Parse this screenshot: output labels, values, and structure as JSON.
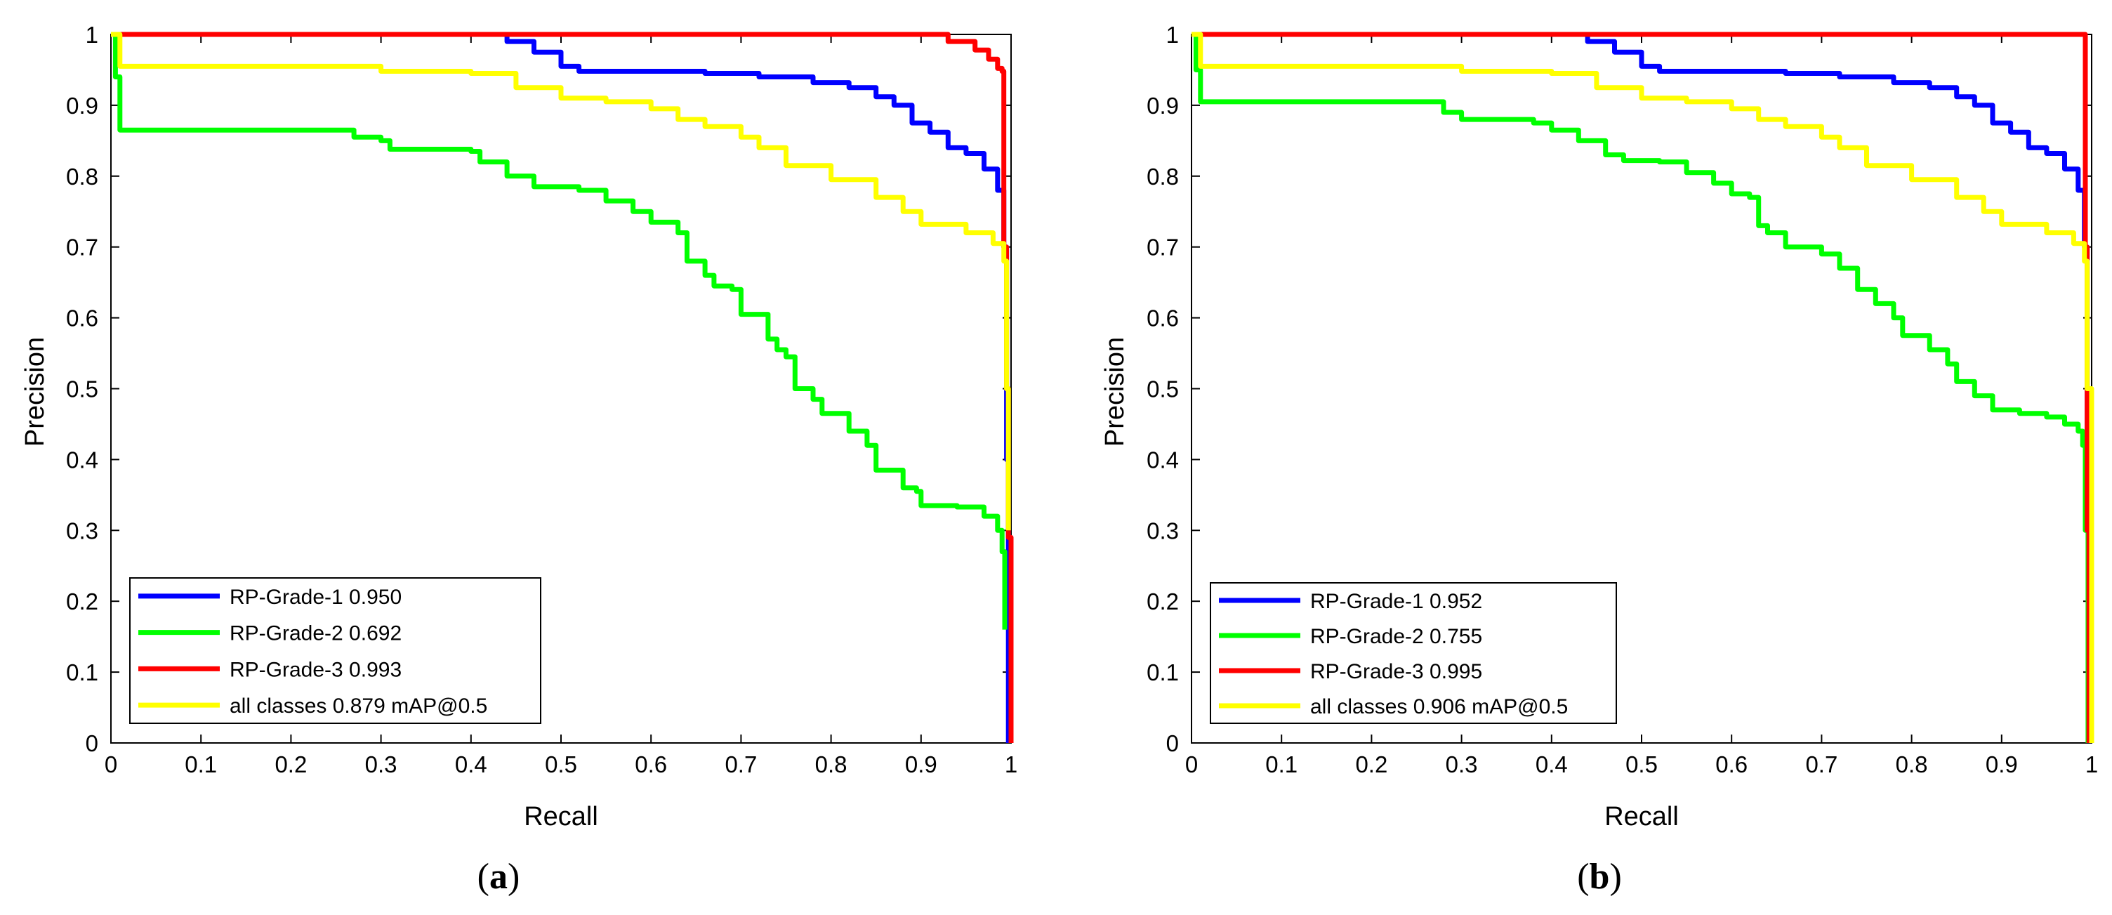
{
  "chart_data": [
    {
      "type": "line",
      "panel_label": "a",
      "xlabel": "Recall",
      "ylabel": "Precision",
      "xlim": [
        0,
        1
      ],
      "ylim": [
        0,
        1
      ],
      "x_ticks": [
        "0",
        "0.1",
        "0.2",
        "0.3",
        "0.4",
        "0.5",
        "0.6",
        "0.7",
        "0.8",
        "0.9",
        "1"
      ],
      "y_ticks": [
        "0",
        "0.1",
        "0.2",
        "0.3",
        "0.4",
        "0.5",
        "0.6",
        "0.7",
        "0.8",
        "0.9",
        "1"
      ],
      "legend_position": "bottom-left",
      "series": [
        {
          "name": "RP-Grade-1 0.950",
          "color": "#0000ff",
          "points": [
            [
              0.0,
              1.0
            ],
            [
              0.4,
              1.0
            ],
            [
              0.44,
              0.99
            ],
            [
              0.47,
              0.975
            ],
            [
              0.5,
              0.955
            ],
            [
              0.52,
              0.948
            ],
            [
              0.6,
              0.948
            ],
            [
              0.66,
              0.945
            ],
            [
              0.72,
              0.94
            ],
            [
              0.78,
              0.932
            ],
            [
              0.82,
              0.925
            ],
            [
              0.85,
              0.912
            ],
            [
              0.87,
              0.9
            ],
            [
              0.89,
              0.875
            ],
            [
              0.91,
              0.862
            ],
            [
              0.93,
              0.84
            ],
            [
              0.95,
              0.832
            ],
            [
              0.97,
              0.81
            ],
            [
              0.985,
              0.78
            ],
            [
              0.992,
              0.7
            ],
            [
              0.995,
              0.4
            ],
            [
              0.997,
              0.0
            ]
          ]
        },
        {
          "name": "RP-Grade-2 0.692",
          "color": "#00ff00",
          "points": [
            [
              0.0,
              1.0
            ],
            [
              0.005,
              0.94
            ],
            [
              0.01,
              0.865
            ],
            [
              0.26,
              0.865
            ],
            [
              0.27,
              0.855
            ],
            [
              0.3,
              0.85
            ],
            [
              0.31,
              0.838
            ],
            [
              0.4,
              0.835
            ],
            [
              0.41,
              0.82
            ],
            [
              0.44,
              0.8
            ],
            [
              0.47,
              0.785
            ],
            [
              0.52,
              0.78
            ],
            [
              0.55,
              0.765
            ],
            [
              0.58,
              0.75
            ],
            [
              0.6,
              0.735
            ],
            [
              0.63,
              0.72
            ],
            [
              0.64,
              0.68
            ],
            [
              0.66,
              0.66
            ],
            [
              0.67,
              0.645
            ],
            [
              0.69,
              0.64
            ],
            [
              0.7,
              0.605
            ],
            [
              0.73,
              0.57
            ],
            [
              0.74,
              0.555
            ],
            [
              0.75,
              0.545
            ],
            [
              0.76,
              0.5
            ],
            [
              0.78,
              0.485
            ],
            [
              0.79,
              0.465
            ],
            [
              0.82,
              0.44
            ],
            [
              0.84,
              0.42
            ],
            [
              0.85,
              0.385
            ],
            [
              0.88,
              0.36
            ],
            [
              0.895,
              0.355
            ],
            [
              0.9,
              0.335
            ],
            [
              0.94,
              0.333
            ],
            [
              0.97,
              0.32
            ],
            [
              0.985,
              0.3
            ],
            [
              0.99,
              0.27
            ],
            [
              0.993,
              0.16
            ]
          ]
        },
        {
          "name": "RP-Grade-3 0.993",
          "color": "#ff0000",
          "points": [
            [
              0.0,
              1.0
            ],
            [
              0.9,
              1.0
            ],
            [
              0.93,
              0.99
            ],
            [
              0.96,
              0.978
            ],
            [
              0.975,
              0.965
            ],
            [
              0.985,
              0.952
            ],
            [
              0.99,
              0.948
            ],
            [
              0.992,
              0.7
            ],
            [
              0.995,
              0.5
            ],
            [
              0.997,
              0.29
            ],
            [
              1.0,
              0.29
            ],
            [
              1.0,
              0.0
            ]
          ]
        },
        {
          "name": "all classes 0.879 mAP@0.5",
          "color": "#ffff00",
          "points": [
            [
              0.0,
              1.0
            ],
            [
              0.01,
              0.955
            ],
            [
              0.26,
              0.955
            ],
            [
              0.3,
              0.948
            ],
            [
              0.4,
              0.945
            ],
            [
              0.45,
              0.925
            ],
            [
              0.5,
              0.91
            ],
            [
              0.55,
              0.905
            ],
            [
              0.6,
              0.895
            ],
            [
              0.63,
              0.88
            ],
            [
              0.66,
              0.87
            ],
            [
              0.7,
              0.855
            ],
            [
              0.72,
              0.84
            ],
            [
              0.75,
              0.815
            ],
            [
              0.8,
              0.795
            ],
            [
              0.85,
              0.77
            ],
            [
              0.88,
              0.75
            ],
            [
              0.9,
              0.732
            ],
            [
              0.95,
              0.72
            ],
            [
              0.98,
              0.705
            ],
            [
              0.992,
              0.68
            ],
            [
              0.995,
              0.5
            ],
            [
              0.997,
              0.3
            ]
          ]
        }
      ]
    },
    {
      "type": "line",
      "panel_label": "b",
      "xlabel": "Recall",
      "ylabel": "Precision",
      "xlim": [
        0,
        1
      ],
      "ylim": [
        0,
        1
      ],
      "x_ticks": [
        "0",
        "0.1",
        "0.2",
        "0.3",
        "0.4",
        "0.5",
        "0.6",
        "0.7",
        "0.8",
        "0.9",
        "1"
      ],
      "y_ticks": [
        "0",
        "0.1",
        "0.2",
        "0.3",
        "0.4",
        "0.5",
        "0.6",
        "0.7",
        "0.8",
        "0.9",
        "1"
      ],
      "legend_position": "bottom-left",
      "series": [
        {
          "name": "RP-Grade-1 0.952",
          "color": "#0000ff",
          "points": [
            [
              0.0,
              1.0
            ],
            [
              0.4,
              1.0
            ],
            [
              0.44,
              0.99
            ],
            [
              0.47,
              0.975
            ],
            [
              0.5,
              0.955
            ],
            [
              0.52,
              0.948
            ],
            [
              0.6,
              0.948
            ],
            [
              0.66,
              0.945
            ],
            [
              0.72,
              0.94
            ],
            [
              0.78,
              0.932
            ],
            [
              0.82,
              0.925
            ],
            [
              0.85,
              0.912
            ],
            [
              0.87,
              0.9
            ],
            [
              0.89,
              0.875
            ],
            [
              0.91,
              0.862
            ],
            [
              0.93,
              0.84
            ],
            [
              0.95,
              0.832
            ],
            [
              0.97,
              0.81
            ],
            [
              0.985,
              0.78
            ],
            [
              0.992,
              0.7
            ],
            [
              0.995,
              0.4
            ],
            [
              0.997,
              0.0
            ]
          ]
        },
        {
          "name": "RP-Grade-2 0.755",
          "color": "#00ff00",
          "points": [
            [
              0.0,
              1.0
            ],
            [
              0.005,
              0.95
            ],
            [
              0.01,
              0.905
            ],
            [
              0.25,
              0.905
            ],
            [
              0.28,
              0.89
            ],
            [
              0.3,
              0.88
            ],
            [
              0.38,
              0.875
            ],
            [
              0.4,
              0.865
            ],
            [
              0.43,
              0.85
            ],
            [
              0.46,
              0.83
            ],
            [
              0.48,
              0.822
            ],
            [
              0.52,
              0.82
            ],
            [
              0.55,
              0.805
            ],
            [
              0.58,
              0.79
            ],
            [
              0.6,
              0.775
            ],
            [
              0.62,
              0.77
            ],
            [
              0.63,
              0.73
            ],
            [
              0.64,
              0.72
            ],
            [
              0.66,
              0.7
            ],
            [
              0.7,
              0.69
            ],
            [
              0.72,
              0.67
            ],
            [
              0.74,
              0.64
            ],
            [
              0.76,
              0.62
            ],
            [
              0.78,
              0.6
            ],
            [
              0.79,
              0.575
            ],
            [
              0.82,
              0.555
            ],
            [
              0.84,
              0.535
            ],
            [
              0.85,
              0.51
            ],
            [
              0.87,
              0.49
            ],
            [
              0.89,
              0.47
            ],
            [
              0.92,
              0.465
            ],
            [
              0.95,
              0.46
            ],
            [
              0.97,
              0.45
            ],
            [
              0.985,
              0.44
            ],
            [
              0.99,
              0.42
            ],
            [
              0.993,
              0.3
            ],
            [
              0.996,
              0.0
            ]
          ]
        },
        {
          "name": "RP-Grade-3 0.995",
          "color": "#ff0000",
          "points": [
            [
              0.0,
              1.0
            ],
            [
              0.99,
              1.0
            ],
            [
              0.993,
              0.7
            ],
            [
              0.995,
              0.3
            ],
            [
              0.997,
              0.0
            ]
          ]
        },
        {
          "name": "all classes 0.906 mAP@0.5",
          "color": "#ffff00",
          "points": [
            [
              0.0,
              1.0
            ],
            [
              0.01,
              0.955
            ],
            [
              0.26,
              0.955
            ],
            [
              0.3,
              0.948
            ],
            [
              0.4,
              0.945
            ],
            [
              0.45,
              0.925
            ],
            [
              0.5,
              0.91
            ],
            [
              0.55,
              0.905
            ],
            [
              0.6,
              0.895
            ],
            [
              0.63,
              0.88
            ],
            [
              0.66,
              0.87
            ],
            [
              0.7,
              0.855
            ],
            [
              0.72,
              0.84
            ],
            [
              0.75,
              0.815
            ],
            [
              0.8,
              0.795
            ],
            [
              0.85,
              0.77
            ],
            [
              0.88,
              0.75
            ],
            [
              0.9,
              0.732
            ],
            [
              0.95,
              0.72
            ],
            [
              0.98,
              0.705
            ],
            [
              0.992,
              0.68
            ],
            [
              0.995,
              0.5
            ],
            [
              1.0,
              0.0
            ]
          ]
        }
      ]
    }
  ]
}
